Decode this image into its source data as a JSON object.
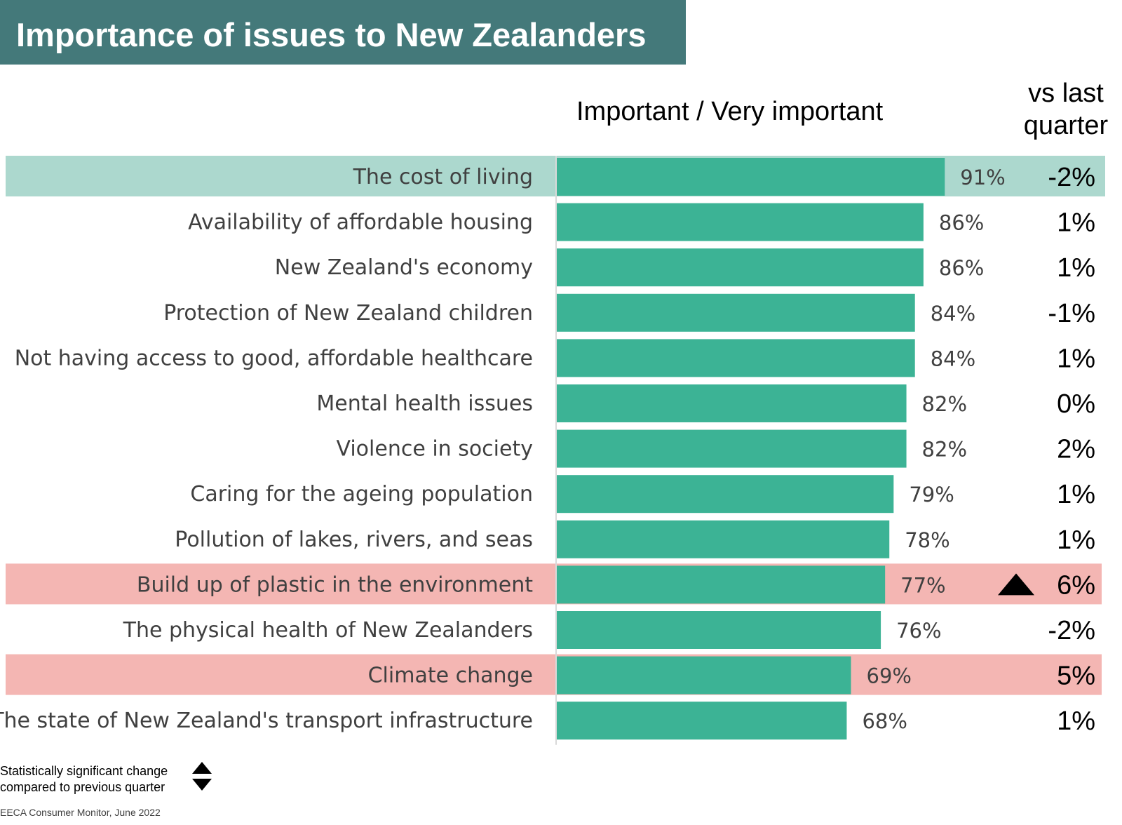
{
  "title": "Importance of issues to New Zealanders",
  "columns": {
    "value_header": "Important / Very important",
    "change_header_line1": "vs last",
    "change_header_line2": "quarter"
  },
  "legend": {
    "line1": "Statistically significant change",
    "line2": "compared to previous quarter",
    "up_icon": "triangle-up-icon",
    "down_icon": "triangle-down-icon"
  },
  "source": "EECA Consumer Monitor, June 2022",
  "colors": {
    "bar": "#3cb395",
    "highlight_teal": "#acd8ce",
    "highlight_red": "#f4b6b3",
    "title_band": "#44797a"
  },
  "chart_data": {
    "type": "bar",
    "orientation": "horizontal",
    "xlim": [
      0,
      100
    ],
    "categories": [
      "The cost of living",
      "Availability of affordable housing",
      "New Zealand's economy",
      "Protection of New Zealand children",
      "Not having access to good, affordable healthcare",
      "Mental health issues",
      "Violence in society",
      "Caring for the ageing population",
      "Pollution of lakes, rivers, and seas",
      "Build up of plastic in the environment",
      "The physical health of New Zealanders",
      "Climate change",
      "The state of New Zealand's transport infrastructure"
    ],
    "values": [
      91,
      86,
      86,
      84,
      84,
      82,
      82,
      79,
      78,
      77,
      76,
      69,
      68
    ],
    "value_labels": [
      "91%",
      "86%",
      "86%",
      "84%",
      "84%",
      "82%",
      "82%",
      "79%",
      "78%",
      "77%",
      "76%",
      "69%",
      "68%"
    ],
    "change_labels": [
      "-2%",
      "1%",
      "1%",
      "-1%",
      "1%",
      "0%",
      "2%",
      "1%",
      "1%",
      "6%",
      "-2%",
      "5%",
      "1%"
    ],
    "highlights": [
      "teal",
      "",
      "",
      "",
      "",
      "",
      "",
      "",
      "",
      "red",
      "",
      "red",
      ""
    ],
    "significant": [
      "",
      "",
      "",
      "",
      "",
      "",
      "",
      "",
      "",
      "up",
      "",
      "",
      ""
    ]
  }
}
